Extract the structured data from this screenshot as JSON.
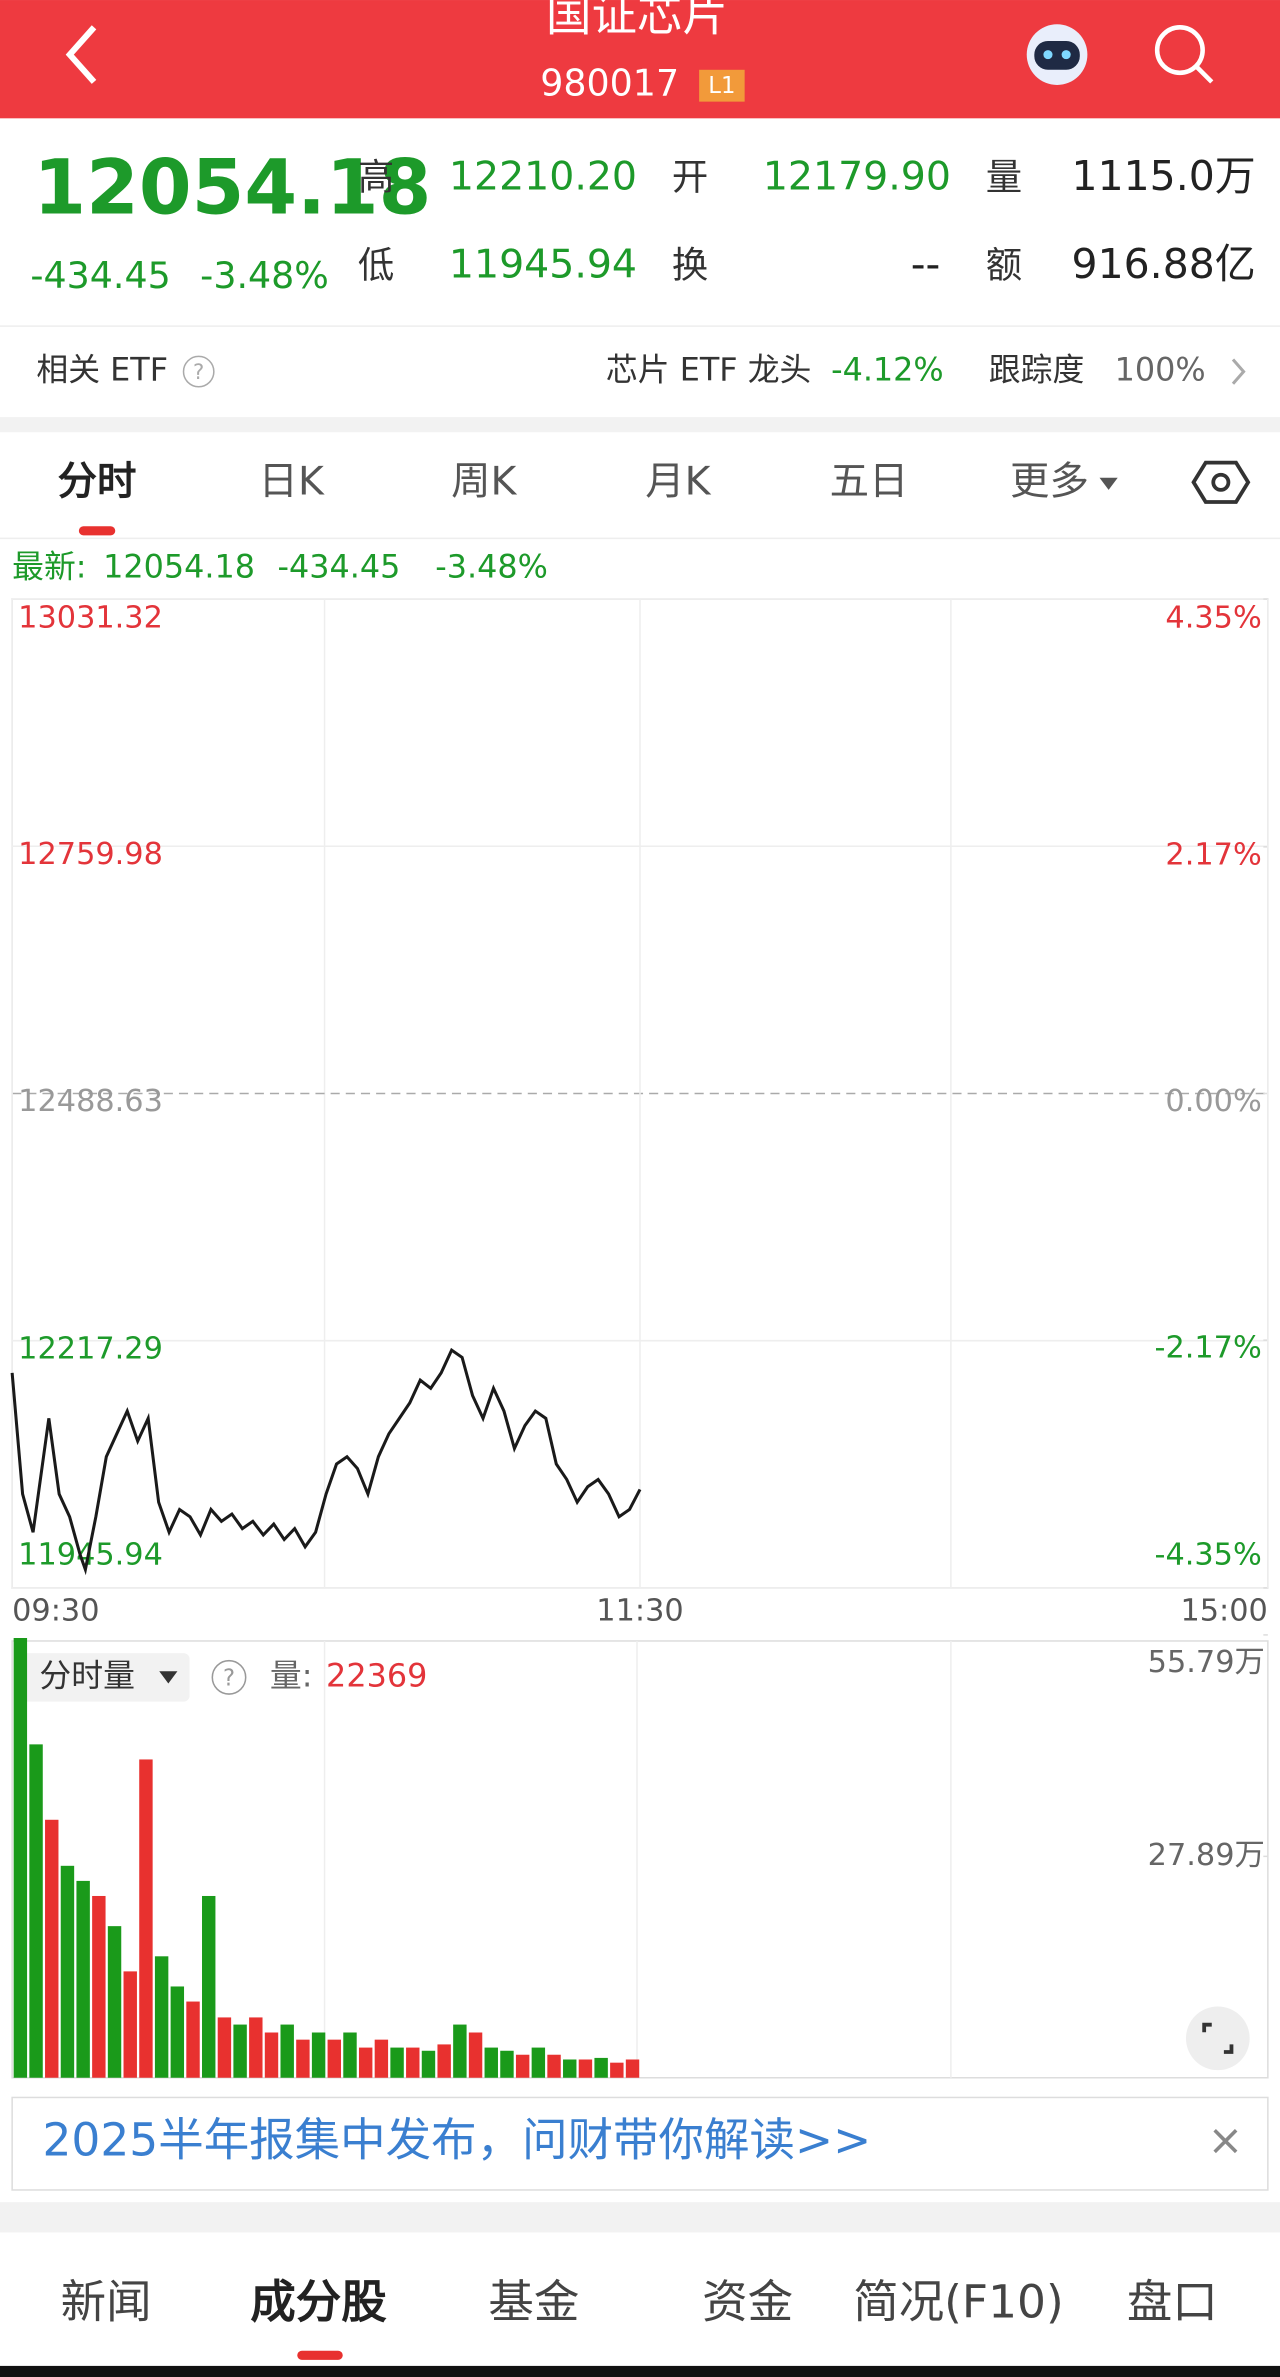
{
  "header": {
    "title": "国证芯片",
    "code": "980017",
    "badge": "L1"
  },
  "quote": {
    "price": "12054.18",
    "change": "-434.45",
    "change_pct": "-3.48%",
    "fields": [
      {
        "label": "高",
        "value": "12210.20"
      },
      {
        "label": "低",
        "value": "11945.94"
      },
      {
        "label": "开",
        "value": "12179.90"
      },
      {
        "label": "换",
        "value": "--"
      },
      {
        "label": "量",
        "value": "1115.0万"
      },
      {
        "label": "额",
        "value": "916.88亿"
      }
    ]
  },
  "etf": {
    "label": "相关 ETF",
    "name": "芯片 ETF 龙头",
    "change": "-4.12%",
    "tracking_label": "跟踪度",
    "tracking": "100%"
  },
  "tabs": [
    "分时",
    "日K",
    "周K",
    "月K",
    "五日",
    "更多"
  ],
  "latest": {
    "label": "最新:",
    "price": "12054.18",
    "change": "-434.45",
    "change_pct": "-3.48%"
  },
  "price_chart": {
    "type": "line",
    "color": "#1a1a1a",
    "x": [
      0,
      2,
      4,
      6,
      7,
      9,
      11,
      13,
      14,
      16,
      18,
      20,
      22,
      24,
      26,
      28,
      30,
      32,
      34,
      36,
      38,
      40,
      42,
      44,
      46,
      48,
      50,
      52,
      54,
      56,
      58,
      60,
      62,
      64,
      66,
      68,
      70,
      72,
      74,
      76,
      78,
      80,
      82,
      84,
      86,
      88,
      90,
      92,
      94,
      96,
      98,
      100,
      102,
      104,
      106,
      108,
      110,
      112,
      114,
      116,
      118,
      120
    ],
    "values": [
      12182,
      12049,
      12007,
      12090,
      12132,
      12049,
      12024,
      11982,
      11966,
      12024,
      12090,
      12115,
      12140,
      12107,
      12132,
      12040,
      12007,
      12032,
      12024,
      12004,
      12032,
      12019,
      12027,
      12011,
      12019,
      12004,
      12016,
      11999,
      12011,
      11991,
      12007,
      12049,
      12082,
      12090,
      12077,
      12049,
      12090,
      12115,
      12132,
      12149,
      12174,
      12165,
      12182,
      12207,
      12199,
      12157,
      12132,
      12165,
      12140,
      12099,
      12124,
      12140,
      12132,
      12082,
      12065,
      12040,
      12057,
      12065,
      12049,
      12024,
      12032,
      12054
    ],
    "xlim": [
      0,
      240
    ],
    "xticks": [
      {
        "value": 0,
        "label": "09:30"
      },
      {
        "value": 120,
        "label": "11:30"
      },
      {
        "value": 240,
        "label": "15:00"
      }
    ],
    "ylim": [
      11945.94,
      13031.32
    ],
    "yticks": [
      11945.94,
      12217.29,
      12488.63,
      12759.98,
      13031.32
    ],
    "y2lim": [
      -4.35,
      4.35
    ],
    "y2ticks": [
      {
        "value": -4.35,
        "label": "-4.35%"
      },
      {
        "value": -2.17,
        "label": "-2.17%"
      },
      {
        "value": 0,
        "label": "0.00%"
      },
      {
        "value": 2.17,
        "label": "2.17%"
      },
      {
        "value": 4.35,
        "label": "4.35%"
      }
    ],
    "grid": true
  },
  "volume_chart": {
    "type": "bar",
    "selector": "分时量",
    "volume_label": "量:",
    "volume": "22369",
    "values": [
      554000,
      420000,
      325000,
      267000,
      248000,
      229000,
      191000,
      134000,
      401000,
      153000,
      115000,
      96000,
      229000,
      76000,
      67000,
      76000,
      57000,
      67000,
      48000,
      57000,
      48000,
      57000,
      38000,
      48000,
      38000,
      38000,
      34000,
      42000,
      67000,
      57000,
      38000,
      34000,
      29000,
      38000,
      29000,
      23000,
      23000,
      25000,
      19000,
      23000
    ],
    "colors": [
      "#1a9a1a",
      "#1a9a1a",
      "#e8312f",
      "#1a9a1a",
      "#1a9a1a",
      "#e8312f",
      "#1a9a1a",
      "#e8312f",
      "#e8312f",
      "#1a9a1a",
      "#1a9a1a",
      "#e8312f",
      "#1a9a1a",
      "#e8312f",
      "#1a9a1a",
      "#e8312f",
      "#e8312f",
      "#1a9a1a",
      "#e8312f",
      "#1a9a1a",
      "#e8312f",
      "#1a9a1a",
      "#e8312f",
      "#e8312f",
      "#1a9a1a",
      "#e8312f",
      "#1a9a1a",
      "#e8312f",
      "#1a9a1a",
      "#e8312f",
      "#1a9a1a",
      "#1a9a1a",
      "#e8312f",
      "#1a9a1a",
      "#e8312f",
      "#1a9a1a",
      "#e8312f",
      "#1a9a1a",
      "#e8312f",
      "#e8312f"
    ],
    "ylim": [
      0,
      557900
    ],
    "yticks": [
      {
        "value": 278900,
        "label": "27.89万"
      },
      {
        "value": 557900,
        "label": "55.79万"
      }
    ]
  },
  "banner": {
    "text": "2025半年报集中发布，问财带你解读>>",
    "close": "×"
  },
  "bottom_tabs": [
    "新闻",
    "成分股",
    "基金",
    "资金",
    "简况(F10)",
    "盘口"
  ]
}
